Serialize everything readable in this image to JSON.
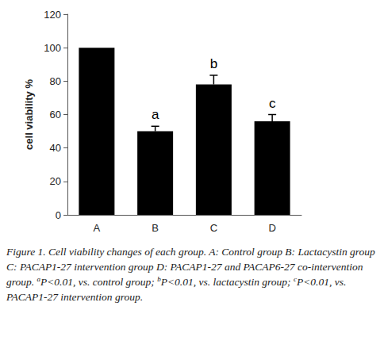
{
  "chart_data": {
    "type": "bar",
    "y_label": "cell viability %",
    "categories": [
      "A",
      "B",
      "C",
      "D"
    ],
    "values": [
      100,
      50,
      78,
      56
    ],
    "errors": [
      0,
      3,
      5.5,
      4
    ],
    "color": "#000000",
    "ylim": [
      0,
      120
    ],
    "yticks": [
      0,
      20,
      40,
      60,
      80,
      100,
      120
    ],
    "grid": false,
    "annotations": [
      {
        "category": "B",
        "text": "a"
      },
      {
        "category": "C",
        "text": "b"
      },
      {
        "category": "D",
        "text": "c"
      }
    ],
    "caption": "Figure 1. Cell viability changes of each group. A: Control group B: Lactacystin group C: PACAP1-27 intervention group D: PACAP1-27 and PACAP6-27 co-intervention group.",
    "footnotes": [
      {
        "mark": "a",
        "text": "P<0.01, vs. control group;"
      },
      {
        "mark": "b",
        "text": "P<0.01, vs. lactacystin group;"
      },
      {
        "mark": "c",
        "text": "P<0.01, vs. PACAP1-27 intervention group."
      }
    ]
  }
}
